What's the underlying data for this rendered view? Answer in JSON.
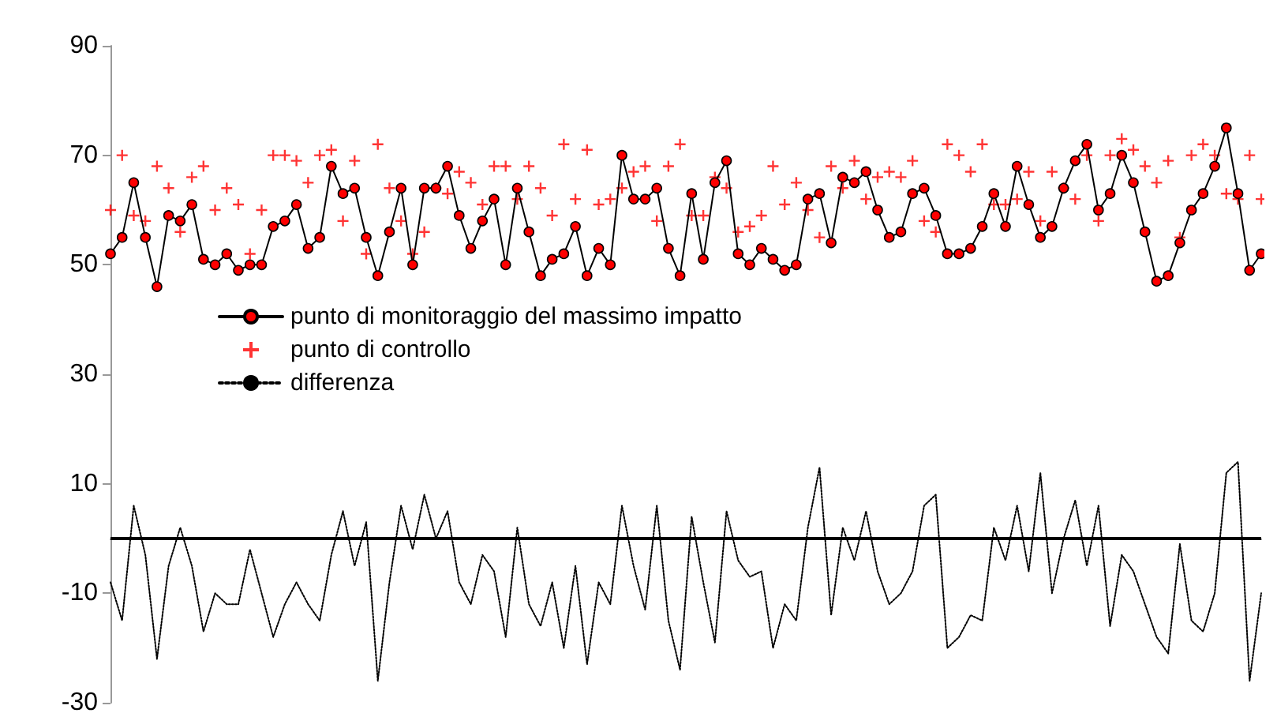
{
  "chart_data": {
    "type": "line",
    "categories": [
      null,
      null,
      null,
      null,
      null,
      null,
      null,
      null,
      null,
      null,
      null,
      null,
      null,
      null,
      null,
      null,
      null,
      null,
      null,
      null,
      null,
      null,
      null,
      null,
      null,
      null,
      null,
      null,
      null,
      null,
      null,
      null,
      null,
      null,
      null,
      null,
      null,
      null,
      null,
      null,
      null,
      null,
      null,
      null,
      null,
      null,
      null,
      null,
      null,
      null,
      null,
      null,
      null,
      null,
      null,
      null,
      null,
      null,
      null,
      null,
      null,
      null,
      null,
      null,
      null,
      null,
      null,
      null,
      null,
      null,
      null,
      null,
      null,
      null,
      null,
      null,
      null,
      null,
      null,
      null,
      null,
      null,
      null,
      null,
      null,
      null,
      null,
      null,
      null,
      null,
      null,
      null,
      null,
      null,
      null,
      null,
      null,
      null,
      null,
      null
    ],
    "series": [
      {
        "name": "punto di monitoraggio del massimo impatto",
        "marker": "circle",
        "color": "#ff0000",
        "values": [
          52,
          55,
          65,
          55,
          46,
          59,
          58,
          61,
          51,
          50,
          52,
          49,
          50,
          50,
          57,
          58,
          61,
          53,
          55,
          68,
          63,
          64,
          55,
          48,
          56,
          64,
          50,
          64,
          64,
          68,
          59,
          53,
          58,
          62,
          50,
          64,
          56,
          48,
          51,
          52,
          57,
          48,
          53,
          50,
          70,
          62,
          62,
          64,
          53,
          48,
          63,
          51,
          65,
          69,
          52,
          50,
          53,
          51,
          49,
          50,
          62,
          63,
          54,
          66,
          65,
          67,
          60,
          55,
          56,
          63,
          64,
          59,
          52,
          52,
          53,
          57,
          63,
          57,
          68,
          61,
          55,
          57,
          64,
          69,
          72,
          60,
          63,
          70,
          65,
          56,
          47,
          48,
          54,
          60,
          63,
          68,
          75,
          63,
          49,
          52
        ]
      },
      {
        "name": "punto di controllo",
        "type": "scatter",
        "marker": "cross",
        "color": "#ff0000",
        "values": [
          60,
          70,
          59,
          58,
          68,
          64,
          56,
          66,
          68,
          60,
          64,
          61,
          52,
          60,
          70,
          70,
          69,
          65,
          70,
          71,
          58,
          69,
          52,
          72,
          64,
          58,
          52,
          56,
          64,
          63,
          67,
          65,
          61,
          68,
          68,
          62,
          68,
          64,
          59,
          72,
          62,
          71,
          61,
          62,
          64,
          67,
          68,
          58,
          68,
          72,
          59,
          59,
          66,
          64,
          56,
          57,
          59,
          68,
          61,
          65,
          60,
          55,
          68,
          64,
          69,
          62,
          66,
          67,
          66,
          69,
          58,
          56,
          72,
          70,
          67,
          72,
          61,
          61,
          62,
          67,
          58,
          67,
          64,
          62,
          70,
          58,
          70,
          73,
          71,
          68,
          65,
          69,
          55,
          70,
          72,
          70,
          63,
          62,
          70,
          62
        ]
      },
      {
        "name": "differenza",
        "marker": "none",
        "line_style": "dotted",
        "color": "#000000",
        "values": [
          -8,
          -15,
          6,
          -3,
          -22,
          -5,
          2,
          -5,
          -17,
          -10,
          -12,
          -12,
          -2,
          -10,
          -18,
          -12,
          -8,
          -12,
          -15,
          -3,
          5,
          -5,
          3,
          -26,
          -8,
          6,
          -2,
          8,
          0,
          5,
          -8,
          -12,
          -3,
          -6,
          -18,
          2,
          -12,
          -16,
          -8,
          -20,
          -5,
          -23,
          -8,
          -12,
          6,
          -5,
          -13,
          6,
          -15,
          -24,
          4,
          -8,
          -19,
          5,
          -4,
          -7,
          -6,
          -20,
          -12,
          -15,
          2,
          13,
          -14,
          2,
          -4,
          5,
          -6,
          -12,
          -10,
          -6,
          6,
          8,
          -20,
          -18,
          -14,
          -15,
          2,
          -4,
          6,
          -6,
          12,
          -10,
          0,
          7,
          -5,
          6,
          -16,
          -3,
          -6,
          -12,
          -18,
          -21,
          -1,
          -15,
          -17,
          -10,
          12,
          14,
          -26,
          -10
        ]
      }
    ],
    "ylim": [
      -30,
      90
    ],
    "yticks": [
      -30,
      -10,
      10,
      30,
      50,
      70,
      90
    ],
    "ref_lines": [
      {
        "axis": "y",
        "value": 0,
        "color": "#000000",
        "line_style": "solid"
      }
    ],
    "grid": false,
    "legend": "left",
    "tick_labels": "y"
  }
}
